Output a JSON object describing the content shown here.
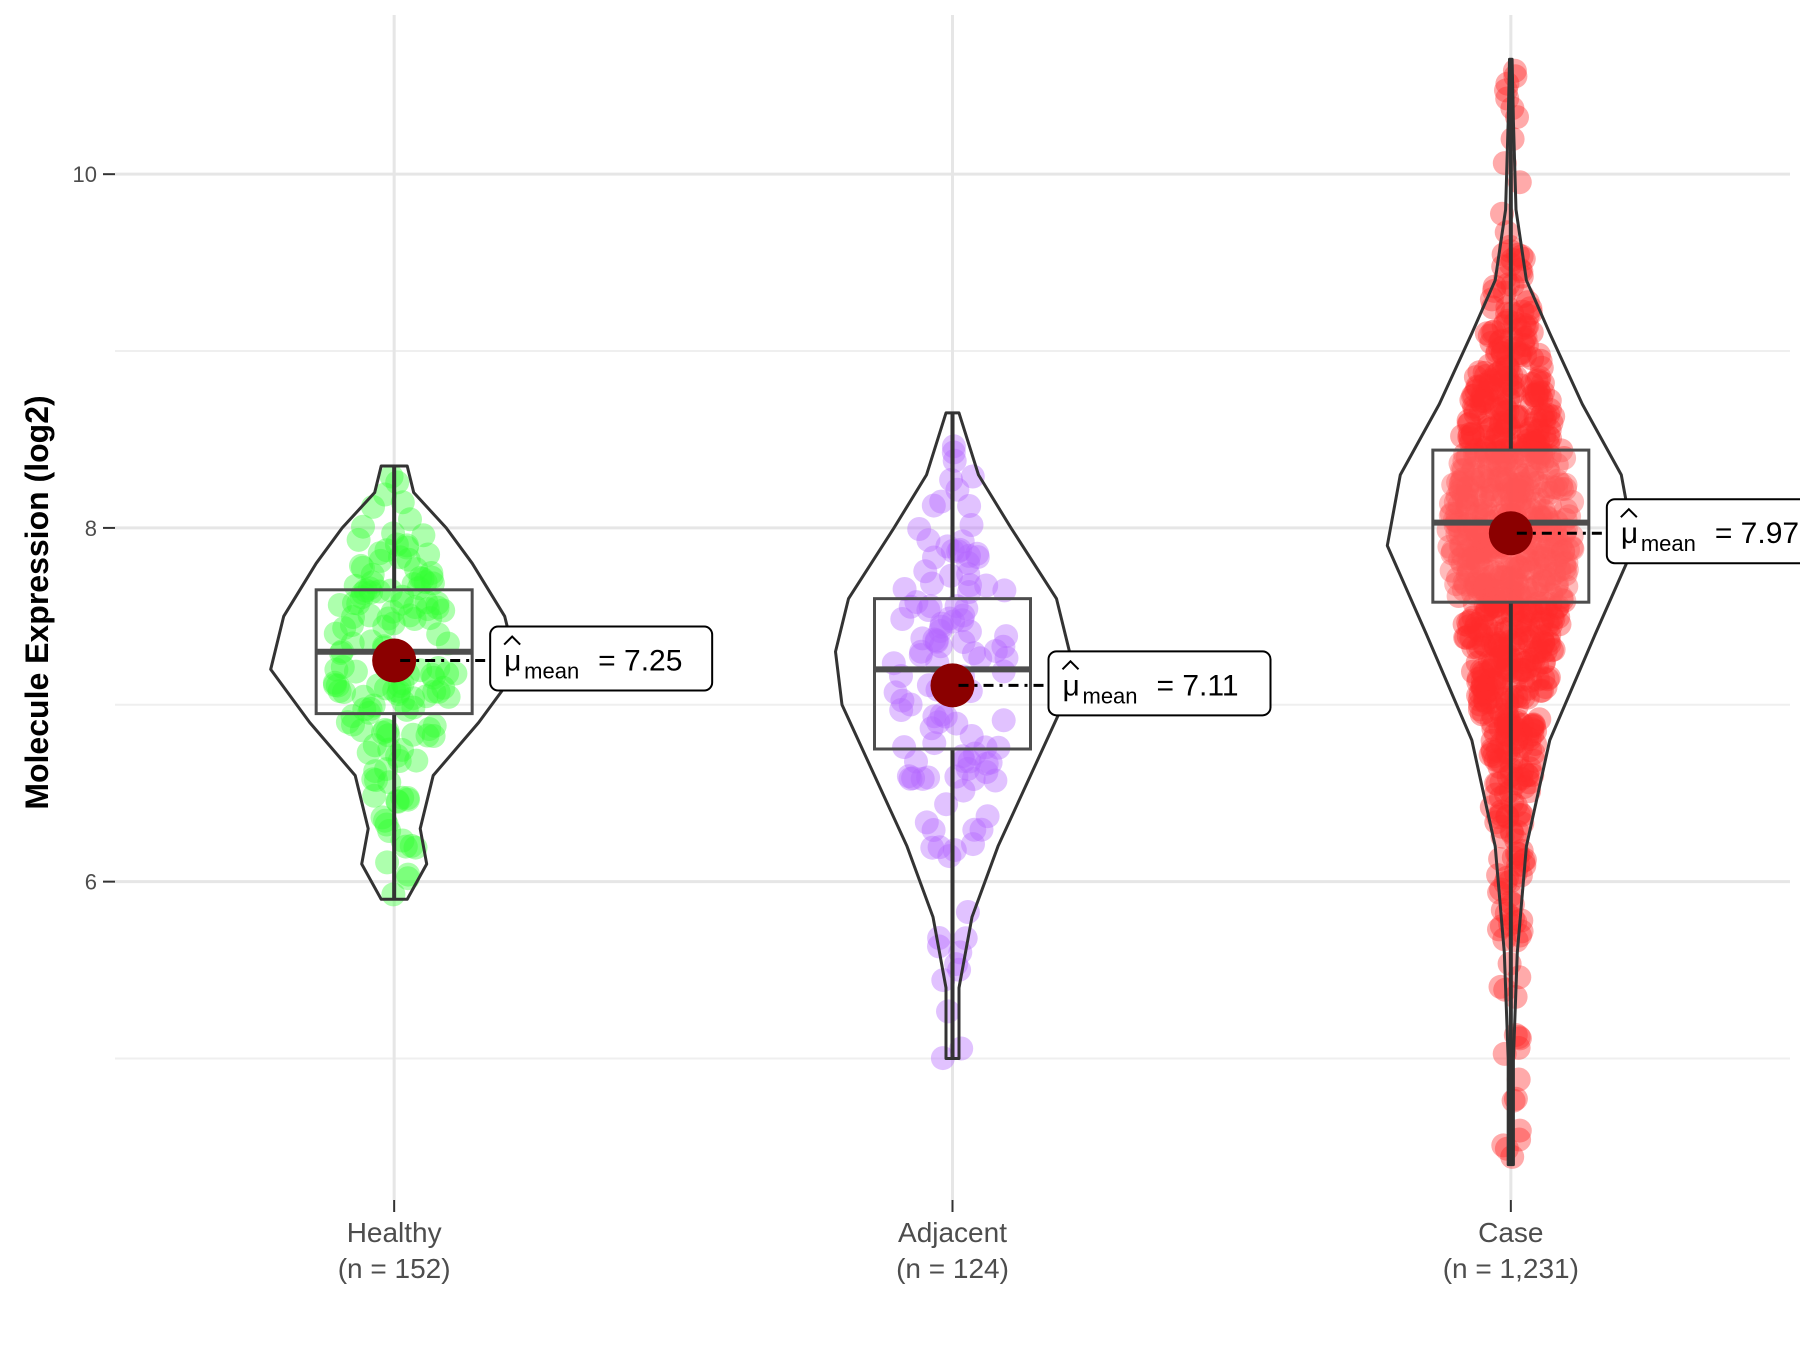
{
  "chart_data": {
    "type": "violin",
    "title": "",
    "xlabel": "",
    "ylabel": "Molecule Expression (log2)",
    "ylim": [
      4.2,
      10.9
    ],
    "yticks": [
      6,
      8,
      10
    ],
    "ytick_labels": [
      "6",
      "8",
      "10"
    ],
    "grid": true,
    "mean_symbol": "μ",
    "mean_subscript": "mean",
    "groups": [
      {
        "name": "Healthy",
        "n_label": "(n = 152)",
        "color": "#33ff33",
        "mean": 7.25,
        "mean_label": "7.25",
        "median": 7.3,
        "q1": 6.95,
        "q3": 7.65,
        "whisker_low": 5.9,
        "whisker_high": 8.35,
        "min": 5.9,
        "max": 8.35,
        "density": [
          [
            5.9,
            0.1
          ],
          [
            6.1,
            0.25
          ],
          [
            6.3,
            0.2
          ],
          [
            6.6,
            0.3
          ],
          [
            6.9,
            0.65
          ],
          [
            7.2,
            0.95
          ],
          [
            7.5,
            0.85
          ],
          [
            7.8,
            0.6
          ],
          [
            8.0,
            0.4
          ],
          [
            8.2,
            0.15
          ],
          [
            8.35,
            0.1
          ]
        ]
      },
      {
        "name": "Adjacent",
        "n_label": "(n = 124)",
        "color": "#b366ff",
        "mean": 7.11,
        "mean_label": "7.11",
        "median": 7.2,
        "q1": 6.75,
        "q3": 7.6,
        "whisker_low": 5.0,
        "whisker_high": 8.65,
        "min": 5.0,
        "max": 8.65,
        "density": [
          [
            5.0,
            0.05
          ],
          [
            5.4,
            0.05
          ],
          [
            5.8,
            0.15
          ],
          [
            6.2,
            0.35
          ],
          [
            6.6,
            0.6
          ],
          [
            7.0,
            0.85
          ],
          [
            7.3,
            0.9
          ],
          [
            7.6,
            0.8
          ],
          [
            8.0,
            0.45
          ],
          [
            8.3,
            0.2
          ],
          [
            8.65,
            0.05
          ]
        ]
      },
      {
        "name": "Case",
        "n_label": "(n = 1,231)",
        "color": "#ff2b2b",
        "mean": 7.97,
        "mean_label": "7.97",
        "median": 8.03,
        "q1": 7.58,
        "q3": 8.44,
        "whisker_low": 4.4,
        "whisker_high": 10.65,
        "min": 4.4,
        "max": 10.65,
        "density": [
          [
            4.4,
            0.02
          ],
          [
            5.0,
            0.02
          ],
          [
            5.6,
            0.05
          ],
          [
            6.2,
            0.12
          ],
          [
            6.8,
            0.3
          ],
          [
            7.4,
            0.65
          ],
          [
            7.9,
            0.95
          ],
          [
            8.3,
            0.85
          ],
          [
            8.7,
            0.55
          ],
          [
            9.1,
            0.3
          ],
          [
            9.4,
            0.12
          ],
          [
            9.8,
            0.04
          ],
          [
            10.3,
            0.02
          ],
          [
            10.65,
            0.01
          ]
        ]
      }
    ]
  }
}
